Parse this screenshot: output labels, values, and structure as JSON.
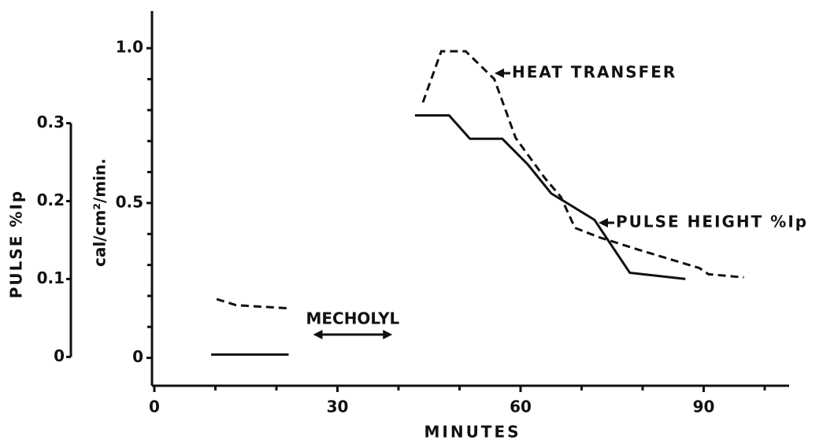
{
  "chart_data": {
    "type": "line",
    "xlabel": "MINUTES",
    "ylabel": "cal/cm²/min.",
    "y2label": "PULSE %Ip",
    "xlim": [
      0,
      104
    ],
    "xticks": [
      0,
      30,
      60,
      90
    ],
    "xminorticks": [
      10,
      20,
      40,
      50,
      70,
      80,
      100
    ],
    "ylim": [
      -0.09,
      1.12
    ],
    "yticks": [
      0,
      0.5,
      {
        "value": 1,
        "label": "1.0"
      }
    ],
    "yminorticks": [
      0.1,
      0.2,
      0.3,
      0.4,
      0.6,
      0.7,
      0.8,
      0.9
    ],
    "y2lim": [
      -0.037,
      0.444
    ],
    "y2ticks": [
      0,
      0.1,
      0.2,
      0.3
    ],
    "series": [
      {
        "name": "HEAT TRANSFER",
        "color": "#111111",
        "dash": true,
        "x": [
          10.2,
          13.4,
          22.2,
          null,
          44,
          47,
          51,
          55.7,
          59.2,
          64,
          66.6,
          68.9,
          72.8,
          79.2,
          89.3,
          90.8,
          96.6
        ],
        "values": [
          0.19,
          0.17,
          0.16,
          null,
          0.825,
          0.99,
          0.99,
          0.9,
          0.71,
          0.58,
          0.52,
          0.42,
          0.39,
          0.35,
          0.29,
          0.27,
          0.26
        ]
      },
      {
        "name": "PULSE HEIGHT %Ip",
        "color": "#111111",
        "dash": false,
        "axis": "y2",
        "x": [
          9.3,
          22,
          null,
          42.7,
          48.3,
          51.7,
          57,
          61.2,
          65,
          72.1,
          77.9,
          87
        ],
        "values": [
          0.003,
          0.003,
          null,
          0.31,
          0.31,
          0.28,
          0.28,
          0.247,
          0.21,
          0.176,
          0.108,
          0.1
        ]
      }
    ],
    "annotations": [
      {
        "text": "MECHOLYL",
        "span": [
          26,
          39
        ]
      }
    ]
  }
}
